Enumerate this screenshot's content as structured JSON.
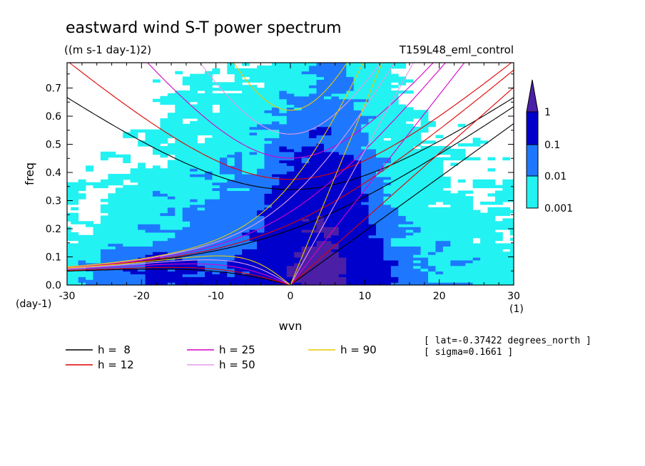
{
  "chart_data": {
    "type": "heatmap",
    "title": "eastward wind S-T power spectrum",
    "subtitle": "((m s-1 day-1)2)",
    "run_label": "T159L48_eml_control",
    "xlabel": "wvn",
    "ylabel": "freq",
    "x_unit": "(1)",
    "y_unit": "(day-1)",
    "xlim": [
      -30,
      30
    ],
    "ylim": [
      0,
      0.79
    ],
    "xticks": [
      "-30",
      "-20",
      "-10",
      "0",
      "10",
      "20",
      "30"
    ],
    "yticks": [
      "0.0",
      "0.1",
      "0.2",
      "0.3",
      "0.4",
      "0.5",
      "0.6",
      "0.7"
    ],
    "info_lines": [
      "[ lat=-0.37422 degrees_north ]",
      "[ sigma=0.1661 ]"
    ],
    "colorbar": {
      "levels": [
        "1",
        "0.1",
        "0.01",
        "0.001"
      ],
      "colors": [
        "#4b1fa6",
        "#0000cc",
        "#1e78ff",
        "#22f2f2"
      ]
    },
    "series": [
      {
        "name": "h =  8",
        "h": 8,
        "color": "#000000"
      },
      {
        "name": "h = 12",
        "h": 12,
        "color": "#e00000"
      },
      {
        "name": "h = 25",
        "h": 25,
        "color": "#d800c8"
      },
      {
        "name": "h = 50",
        "h": 50,
        "color": "#e49ae8"
      },
      {
        "name": "h = 90",
        "h": 90,
        "color": "#e8c800"
      }
    ]
  }
}
